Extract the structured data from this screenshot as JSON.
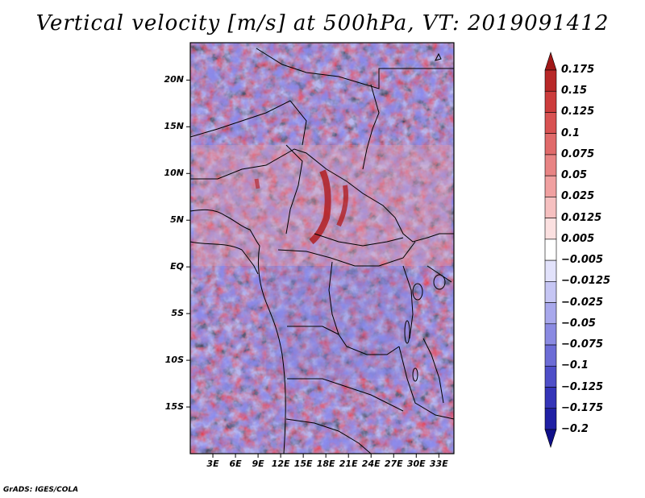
{
  "title": "Vertical velocity [m/s] at 500hPa, VT: 2019091412",
  "credit": "GrADS: IGES/COLA",
  "map": {
    "variable": "Vertical velocity",
    "units": "m/s",
    "level": "500hPa",
    "valid_time": "2019091412",
    "lat_labels": [
      {
        "text": "20N",
        "lat": 20
      },
      {
        "text": "15N",
        "lat": 15
      },
      {
        "text": "10N",
        "lat": 10
      },
      {
        "text": "5N",
        "lat": 5
      },
      {
        "text": "EQ",
        "lat": 0
      },
      {
        "text": "5S",
        "lat": -5
      },
      {
        "text": "10S",
        "lat": -10
      },
      {
        "text": "15S",
        "lat": -15
      }
    ],
    "lon_labels": [
      {
        "text": "3E",
        "lon": 3
      },
      {
        "text": "6E",
        "lon": 6
      },
      {
        "text": "9E",
        "lon": 9
      },
      {
        "text": "12E",
        "lon": 12
      },
      {
        "text": "15E",
        "lon": 15
      },
      {
        "text": "18E",
        "lon": 18
      },
      {
        "text": "21E",
        "lon": 21
      },
      {
        "text": "24E",
        "lon": 24
      },
      {
        "text": "27E",
        "lon": 27
      },
      {
        "text": "30E",
        "lon": 30
      },
      {
        "text": "33E",
        "lon": 33
      }
    ],
    "lon_range": [
      0,
      35
    ],
    "lat_range": [
      -20,
      24
    ]
  },
  "colorbar": {
    "labels": [
      "0.175",
      "0.15",
      "0.125",
      "0.1",
      "0.075",
      "0.05",
      "0.025",
      "0.0125",
      "0.005",
      "−0.005",
      "−0.0125",
      "−0.025",
      "−0.05",
      "−0.075",
      "−0.1",
      "−0.125",
      "−0.175",
      "−0.2"
    ],
    "colors": [
      "#a01818",
      "#b82828",
      "#cc3c3c",
      "#d85252",
      "#e06a6a",
      "#e88484",
      "#f0a0a0",
      "#f6c0c0",
      "#fbe0e0",
      "#ffffff",
      "#e2e2fb",
      "#c6c6f4",
      "#a8a8ec",
      "#8a8ae2",
      "#6c6cd6",
      "#4e4ec8",
      "#3434b8",
      "#2020a4",
      "#10108a"
    ]
  }
}
